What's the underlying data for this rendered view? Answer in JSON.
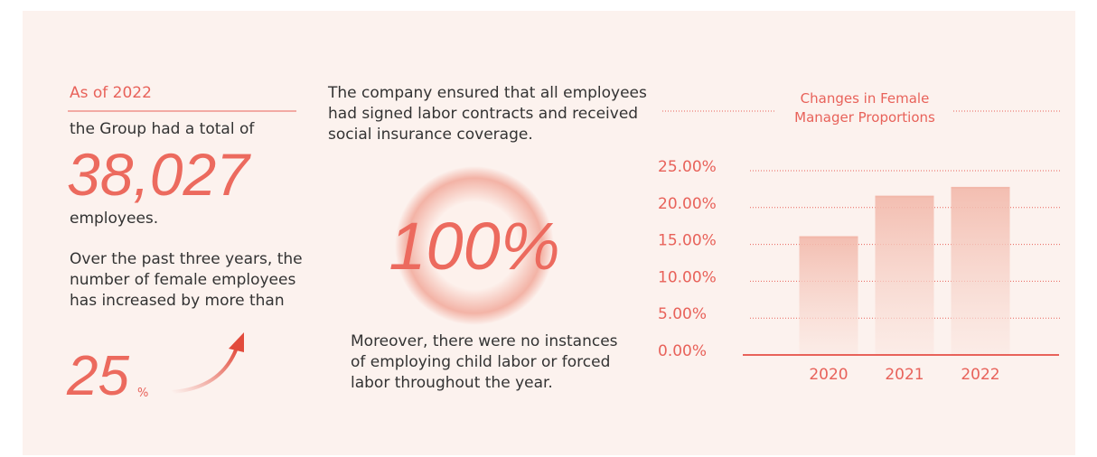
{
  "left": {
    "heading": "As of 2022",
    "intro": "the Group had a total of",
    "total": "38,027",
    "total_unit": "employees.",
    "growth_text": "Over the past three years, the number of female employees has increased by more than",
    "growth": "25",
    "growth_unit": "%"
  },
  "middle": {
    "top_text": "The company ensured that all employees had signed labor contracts and received social insurance coverage.",
    "coverage": "100%",
    "bottom_text": "Moreover, there were no instances of employing child labor or forced labor throughout the year."
  },
  "chart_data": {
    "type": "bar",
    "title": "Changes in Female Manager Proportions",
    "categories": [
      "2020",
      "2021",
      "2022"
    ],
    "values": [
      16.1,
      21.6,
      22.8
    ],
    "color": "#f2b8aa",
    "ylim": [
      0,
      25
    ],
    "yticks": [
      {
        "value": 0,
        "label": "0.00%"
      },
      {
        "value": 5,
        "label": "5.00%"
      },
      {
        "value": 10,
        "label": "10.00%"
      },
      {
        "value": 15,
        "label": "15.00%"
      },
      {
        "value": 20,
        "label": "20.00%"
      },
      {
        "value": 25,
        "label": "25.00%"
      }
    ],
    "grid": true
  }
}
